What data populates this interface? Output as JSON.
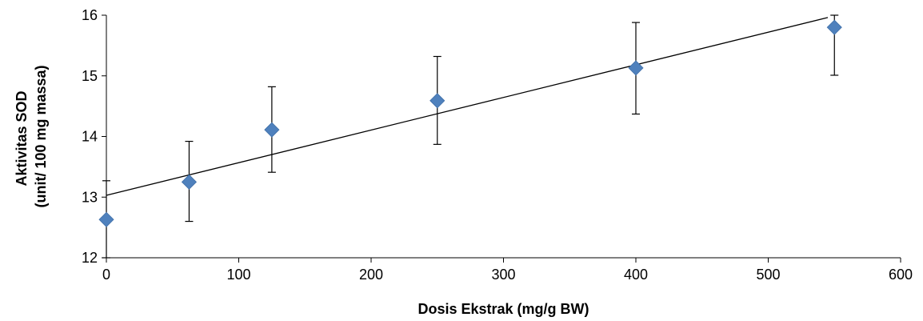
{
  "chart_data": {
    "type": "scatter",
    "title": "",
    "xlabel": "Dosis Ekstrak (mg/g BW)",
    "ylabel_lines": [
      "Aktivitas SOD",
      "(unit/ 100 mg massa)"
    ],
    "xlim": [
      0,
      600
    ],
    "ylim": [
      12,
      16
    ],
    "x_ticks": [
      0,
      100,
      200,
      300,
      400,
      500,
      600
    ],
    "y_ticks": [
      12,
      13,
      14,
      15,
      16
    ],
    "grid": false,
    "series": [
      {
        "marker": "diamond",
        "color": "#4f81bd",
        "points": [
          {
            "x": 0,
            "y": 12.63,
            "err_low": 12.0,
            "err_high": 13.27
          },
          {
            "x": 62.5,
            "y": 13.25,
            "err_low": 12.6,
            "err_high": 13.92
          },
          {
            "x": 125,
            "y": 14.11,
            "err_low": 13.41,
            "err_high": 14.82
          },
          {
            "x": 250,
            "y": 14.59,
            "err_low": 13.87,
            "err_high": 15.32
          },
          {
            "x": 400,
            "y": 15.13,
            "err_low": 14.37,
            "err_high": 15.88
          },
          {
            "x": 550,
            "y": 15.8,
            "err_low": 15.01,
            "err_high": 16.0
          }
        ]
      }
    ],
    "trendline": {
      "type": "linear",
      "slope": 0.00538,
      "intercept": 13.03,
      "x_end": 545,
      "color": "#000000"
    }
  }
}
